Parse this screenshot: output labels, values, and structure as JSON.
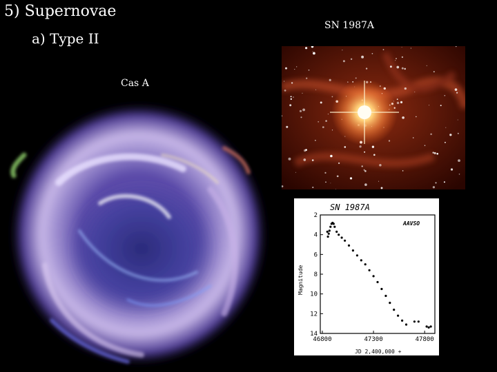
{
  "slide": {
    "title": "5) Supernovae",
    "subtitle": "a) Type II",
    "label_sn": "SN 1987A",
    "label_cas": "Cas A"
  },
  "chart_data": {
    "type": "scatter",
    "title": "SN 1987A",
    "annotation": "AAVSO",
    "xlabel": "JD 2,400,000 +",
    "ylabel": "Magnitude",
    "xlim": [
      46780,
      47900
    ],
    "ylim": [
      14,
      2
    ],
    "x_ticks": [
      "46800",
      "47300",
      "47800"
    ],
    "y_ticks": [
      "2",
      "4",
      "6",
      "8",
      "10",
      "12",
      "14"
    ],
    "points": [
      [
        46849,
        3.7
      ],
      [
        46855,
        4.2
      ],
      [
        46862,
        3.9
      ],
      [
        46870,
        3.6
      ],
      [
        46880,
        3.2
      ],
      [
        46890,
        2.9
      ],
      [
        46900,
        2.8
      ],
      [
        46910,
        2.9
      ],
      [
        46920,
        3.2
      ],
      [
        46940,
        3.7
      ],
      [
        46960,
        4.0
      ],
      [
        46990,
        4.3
      ],
      [
        47020,
        4.6
      ],
      [
        47060,
        5.1
      ],
      [
        47100,
        5.6
      ],
      [
        47140,
        6.1
      ],
      [
        47180,
        6.6
      ],
      [
        47220,
        7.0
      ],
      [
        47260,
        7.6
      ],
      [
        47300,
        8.2
      ],
      [
        47340,
        8.8
      ],
      [
        47380,
        9.5
      ],
      [
        47420,
        10.2
      ],
      [
        47460,
        10.9
      ],
      [
        47500,
        11.6
      ],
      [
        47540,
        12.2
      ],
      [
        47580,
        12.7
      ],
      [
        47620,
        13.1
      ],
      [
        47700,
        12.8
      ],
      [
        47740,
        12.8
      ],
      [
        47820,
        13.3
      ],
      [
        47840,
        13.4
      ],
      [
        47860,
        13.3
      ]
    ]
  }
}
